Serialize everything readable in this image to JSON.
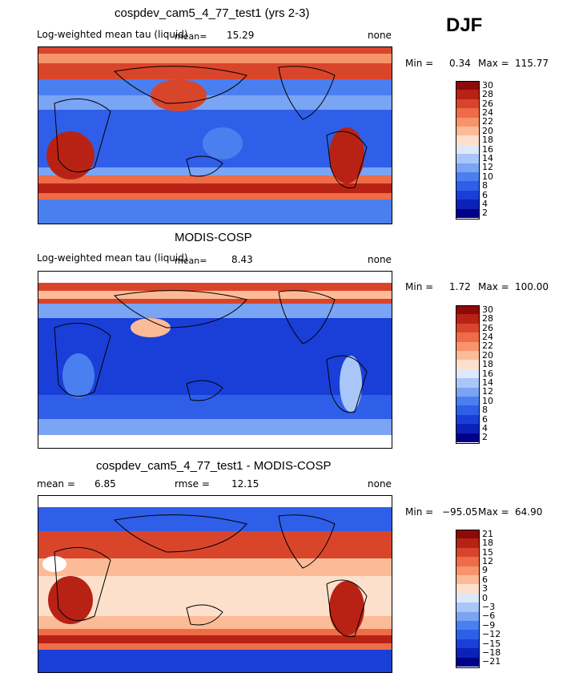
{
  "season": "DJF",
  "panels": [
    {
      "title": "cospdev_cam5_4_77_test1 (yrs 2-3)",
      "subtitle": "Log-weighted mean tau (liquid)",
      "mean_label": "mean=",
      "mean_value": "15.29",
      "units": "none",
      "min_label": "Min =",
      "min_value": "0.34",
      "max_label": "Max =",
      "max_value": "115.77",
      "colorbar_labels": [
        "30",
        "28",
        "26",
        "24",
        "22",
        "20",
        "18",
        "16",
        "14",
        "12",
        "10",
        "8",
        "6",
        "4",
        "2"
      ],
      "palette": "model"
    },
    {
      "title": "MODIS-COSP",
      "subtitle": "Log-weighted mean tau (liquid)",
      "mean_label": "mean=",
      "mean_value": "8.43",
      "units": "none",
      "min_label": "Min =",
      "min_value": "1.72",
      "max_label": "Max =",
      "max_value": "100.00",
      "colorbar_labels": [
        "30",
        "28",
        "26",
        "24",
        "22",
        "20",
        "18",
        "16",
        "14",
        "12",
        "10",
        "8",
        "6",
        "4",
        "2"
      ],
      "palette": "obs"
    },
    {
      "title": "cospdev_cam5_4_77_test1 - MODIS-COSP",
      "mean_label": "mean =",
      "mean_value": "6.85",
      "rmse_label": "rmse =",
      "rmse_value": "12.15",
      "units": "none",
      "min_label": "Min =",
      "min_value": "−95.05",
      "max_label": "Max =",
      "max_value": "64.90",
      "colorbar_labels": [
        "21",
        "18",
        "15",
        "12",
        "9",
        "6",
        "3",
        "0",
        "−3",
        "−6",
        "−9",
        "−12",
        "−15",
        "−18",
        "−21"
      ],
      "palette": "diff"
    }
  ],
  "colors": {
    "scale": [
      "#000088",
      "#0b22b8",
      "#1a3fd8",
      "#2f5fe8",
      "#4a7ff0",
      "#7aa4f4",
      "#a9c6f8",
      "#dde8fb",
      "#fde0cc",
      "#fcbb97",
      "#f7946c",
      "#ee6c48",
      "#d9452b",
      "#b82214",
      "#8c0b06"
    ]
  }
}
